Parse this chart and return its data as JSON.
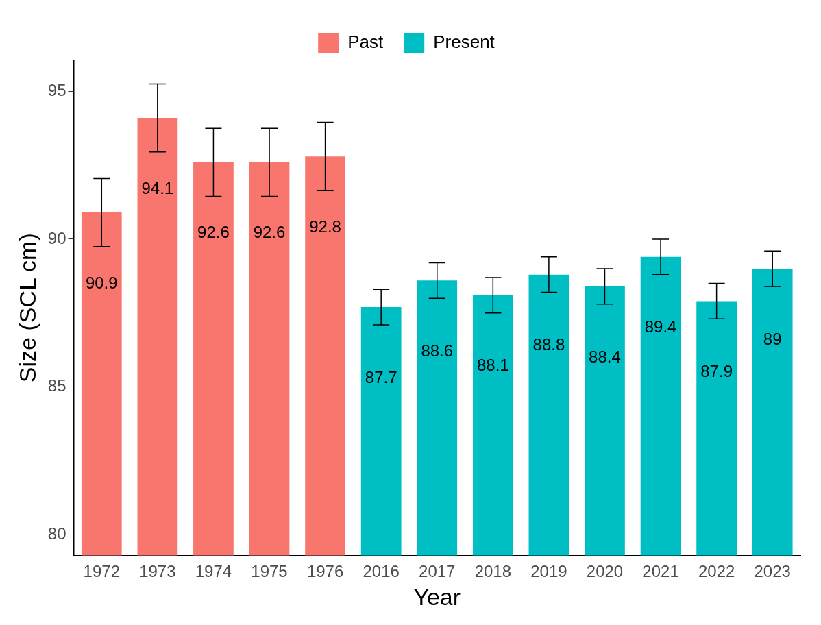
{
  "chart_data": {
    "type": "bar",
    "xlabel": "Year",
    "ylabel": "Size (SCL cm)",
    "categories": [
      "1972",
      "1973",
      "1974",
      "1975",
      "1976",
      "2016",
      "2017",
      "2018",
      "2019",
      "2020",
      "2021",
      "2022",
      "2023"
    ],
    "series": [
      {
        "name": "Past",
        "color": "#f8766d",
        "values": [
          90.9,
          94.1,
          92.6,
          92.6,
          92.8,
          null,
          null,
          null,
          null,
          null,
          null,
          null,
          null
        ],
        "errors": [
          1.15,
          1.15,
          1.15,
          1.15,
          1.15,
          null,
          null,
          null,
          null,
          null,
          null,
          null,
          null
        ]
      },
      {
        "name": "Present",
        "color": "#00bfc4",
        "values": [
          null,
          null,
          null,
          null,
          null,
          87.7,
          88.6,
          88.1,
          88.8,
          88.4,
          89.4,
          87.9,
          89
        ],
        "errors": [
          null,
          null,
          null,
          null,
          null,
          0.6,
          0.6,
          0.6,
          0.6,
          0.6,
          0.6,
          0.6,
          0.6
        ]
      }
    ],
    "ylim": [
      79.3,
      96.05
    ],
    "yticks": [
      80,
      85,
      90,
      95
    ],
    "grid": false,
    "legend": "top",
    "data_labels": true
  }
}
